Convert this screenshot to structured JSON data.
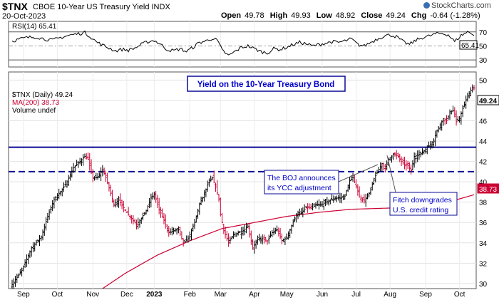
{
  "header": {
    "symbol": "$TNX",
    "description": "CBOE 10-Year US Treasury Yield INDX",
    "date": "20-Oct-2023",
    "watermark": "StockCharts.com",
    "ohlc": {
      "open_label": "Open",
      "open": "49.78",
      "high_label": "High",
      "high": "49.93",
      "low_label": "Low",
      "low": "48.92",
      "close_label": "Close",
      "close": "49.24",
      "chg_label": "Chg",
      "chg": "-0.64 (-1.28%)"
    }
  },
  "rsi_panel": {
    "legend": "RSI(14) 65.41",
    "ticks": [
      "70",
      "50",
      "30"
    ],
    "last_label": "65.41"
  },
  "price_panel": {
    "legend_symbol": "$TNX (Daily) 49.24",
    "legend_ma": "MA(200) 38.73",
    "legend_volume": "Volume undef",
    "title_box": "Yield on the 10-Year Treasury Bond",
    "annotation_boj_line1": "The BOJ announces",
    "annotation_boj_line2": "its YCC adjustment",
    "annotation_fitch_line1": "Fitch downgrades",
    "annotation_fitch_line2": "U.S. credit rating",
    "last_price_label": "49.24",
    "last_ma_label": "38.73"
  },
  "colors": {
    "up": "#000000",
    "down": "#cc0033",
    "ma": "#cc0033",
    "hline": "#0a0a96",
    "rsi_fill": "#5a8a4a",
    "box_border": "#0a0a96",
    "box_text": "#0000cc"
  },
  "chart_data": {
    "type": "ohlc",
    "title": "",
    "x_ticks": [
      "Sep",
      "Oct",
      "Nov",
      "Dec",
      "2023",
      "Feb",
      "Mar",
      "Apr",
      "May",
      "Jun",
      "Jul",
      "Aug",
      "Sep",
      "Oct"
    ],
    "y_ticks": [
      30,
      32,
      34,
      36,
      38,
      40,
      42,
      44,
      46,
      48,
      50
    ],
    "ylim": [
      29.5,
      50.8
    ],
    "close_series": {
      "name": "$TNX (Daily)",
      "keypoints": [
        [
          0,
          29.9
        ],
        [
          6,
          31.3
        ],
        [
          12,
          33.5
        ],
        [
          18,
          34.6
        ],
        [
          22,
          36.6
        ],
        [
          26,
          38.3
        ],
        [
          30,
          39.0
        ],
        [
          34,
          40.0
        ],
        [
          38,
          41.4
        ],
        [
          42,
          42.0
        ],
        [
          45,
          42.5
        ],
        [
          47,
          42.2
        ],
        [
          50,
          40.4
        ],
        [
          53,
          40.4
        ],
        [
          56,
          41.2
        ],
        [
          58,
          40.4
        ],
        [
          60,
          39.4
        ],
        [
          63,
          37.8
        ],
        [
          66,
          38.2
        ],
        [
          70,
          37.2
        ],
        [
          74,
          36.4
        ],
        [
          77,
          35.8
        ],
        [
          80,
          36.4
        ],
        [
          83,
          37.2
        ],
        [
          86,
          38.4
        ],
        [
          88,
          38.8
        ],
        [
          91,
          37.3
        ],
        [
          94,
          36.2
        ],
        [
          97,
          35.0
        ],
        [
          100,
          35.2
        ],
        [
          103,
          35.3
        ],
        [
          106,
          34.0
        ],
        [
          109,
          34.4
        ],
        [
          113,
          36.0
        ],
        [
          116,
          37.8
        ],
        [
          119,
          38.8
        ],
        [
          121,
          39.7
        ],
        [
          124,
          40.4
        ],
        [
          126,
          39.5
        ],
        [
          128,
          38.3
        ],
        [
          129,
          36.8
        ],
        [
          131,
          35.2
        ],
        [
          134,
          34.0
        ],
        [
          137,
          34.8
        ],
        [
          140,
          35.0
        ],
        [
          143,
          35.2
        ],
        [
          146,
          35.6
        ],
        [
          149,
          33.5
        ],
        [
          152,
          34.3
        ],
        [
          155,
          34.4
        ],
        [
          158,
          34.2
        ],
        [
          161,
          35.0
        ],
        [
          164,
          35.3
        ],
        [
          167,
          34.2
        ],
        [
          170,
          34.5
        ],
        [
          173,
          35.7
        ],
        [
          176,
          36.8
        ],
        [
          179,
          36.9
        ],
        [
          182,
          37.5
        ],
        [
          185,
          37.4
        ],
        [
          188,
          37.7
        ],
        [
          191,
          37.7
        ],
        [
          194,
          38.0
        ],
        [
          197,
          38.2
        ],
        [
          200,
          38.4
        ],
        [
          203,
          38.4
        ],
        [
          206,
          38.6
        ],
        [
          209,
          40.1
        ],
        [
          211,
          40.4
        ],
        [
          213,
          39.6
        ],
        [
          215,
          38.5
        ],
        [
          218,
          38.2
        ],
        [
          220,
          38.5
        ],
        [
          222,
          39.2
        ],
        [
          224,
          40.3
        ],
        [
          226,
          40.9
        ],
        [
          229,
          41.8
        ],
        [
          231,
          41.3
        ],
        [
          233,
          42.2
        ],
        [
          236,
          42.7
        ],
        [
          239,
          42.5
        ],
        [
          241,
          42.0
        ],
        [
          243,
          41.7
        ],
        [
          245,
          41.6
        ],
        [
          247,
          41.1
        ],
        [
          249,
          42.5
        ],
        [
          251,
          42.6
        ],
        [
          253,
          42.8
        ],
        [
          256,
          43.2
        ],
        [
          259,
          43.7
        ],
        [
          261,
          44.1
        ],
        [
          263,
          45.0
        ],
        [
          265,
          45.6
        ],
        [
          267,
          46.2
        ],
        [
          269,
          46.0
        ],
        [
          271,
          46.9
        ],
        [
          273,
          47.0
        ],
        [
          275,
          45.9
        ],
        [
          277,
          46.2
        ],
        [
          279,
          47.2
        ],
        [
          281,
          48.0
        ],
        [
          283,
          48.7
        ],
        [
          285,
          49.3
        ],
        [
          286,
          49.24
        ]
      ]
    },
    "ma200": {
      "name": "MA(200)",
      "keypoints": [
        [
          56,
          29.5
        ],
        [
          70,
          31.0
        ],
        [
          90,
          32.8
        ],
        [
          110,
          34.2
        ],
        [
          130,
          35.4
        ],
        [
          150,
          36.0
        ],
        [
          170,
          36.6
        ],
        [
          190,
          37.0
        ],
        [
          210,
          37.3
        ],
        [
          230,
          37.4
        ],
        [
          250,
          37.5
        ],
        [
          270,
          38.0
        ],
        [
          286,
          38.73
        ]
      ]
    },
    "horizontal_lines": [
      {
        "style": "solid",
        "value": 43.4
      },
      {
        "style": "dashed",
        "value": 41.0
      }
    ],
    "rsi": {
      "name": "RSI(14)",
      "ylim": [
        20,
        85
      ],
      "ticks": [
        30,
        50,
        70
      ],
      "last": 65.41,
      "keypoints": [
        [
          0,
          57
        ],
        [
          5,
          60
        ],
        [
          10,
          62
        ],
        [
          15,
          63
        ],
        [
          20,
          60
        ],
        [
          25,
          58
        ],
        [
          30,
          62
        ],
        [
          35,
          65
        ],
        [
          40,
          67
        ],
        [
          45,
          69
        ],
        [
          48,
          64
        ],
        [
          52,
          56
        ],
        [
          56,
          51
        ],
        [
          60,
          47
        ],
        [
          64,
          43
        ],
        [
          68,
          45
        ],
        [
          72,
          44
        ],
        [
          76,
          47
        ],
        [
          80,
          52
        ],
        [
          84,
          56
        ],
        [
          88,
          58
        ],
        [
          92,
          52
        ],
        [
          96,
          45
        ],
        [
          100,
          43
        ],
        [
          104,
          46
        ],
        [
          108,
          42
        ],
        [
          112,
          48
        ],
        [
          116,
          55
        ],
        [
          120,
          57
        ],
        [
          124,
          61
        ],
        [
          127,
          58
        ],
        [
          130,
          44
        ],
        [
          134,
          36
        ],
        [
          138,
          42
        ],
        [
          142,
          48
        ],
        [
          146,
          50
        ],
        [
          150,
          46
        ],
        [
          154,
          42
        ],
        [
          158,
          40
        ],
        [
          162,
          46
        ],
        [
          166,
          45
        ],
        [
          170,
          48
        ],
        [
          174,
          52
        ],
        [
          178,
          55
        ],
        [
          182,
          53
        ],
        [
          186,
          50
        ],
        [
          190,
          52
        ],
        [
          194,
          54
        ],
        [
          198,
          56
        ],
        [
          202,
          55
        ],
        [
          206,
          57
        ],
        [
          210,
          60
        ],
        [
          214,
          52
        ],
        [
          218,
          50
        ],
        [
          222,
          55
        ],
        [
          226,
          60
        ],
        [
          230,
          64
        ],
        [
          234,
          66
        ],
        [
          238,
          63
        ],
        [
          242,
          56
        ],
        [
          246,
          52
        ],
        [
          250,
          58
        ],
        [
          254,
          62
        ],
        [
          258,
          64
        ],
        [
          262,
          67
        ],
        [
          266,
          68
        ],
        [
          270,
          66
        ],
        [
          274,
          56
        ],
        [
          278,
          65
        ],
        [
          282,
          70
        ],
        [
          285,
          68
        ],
        [
          286,
          65.41
        ]
      ]
    }
  }
}
